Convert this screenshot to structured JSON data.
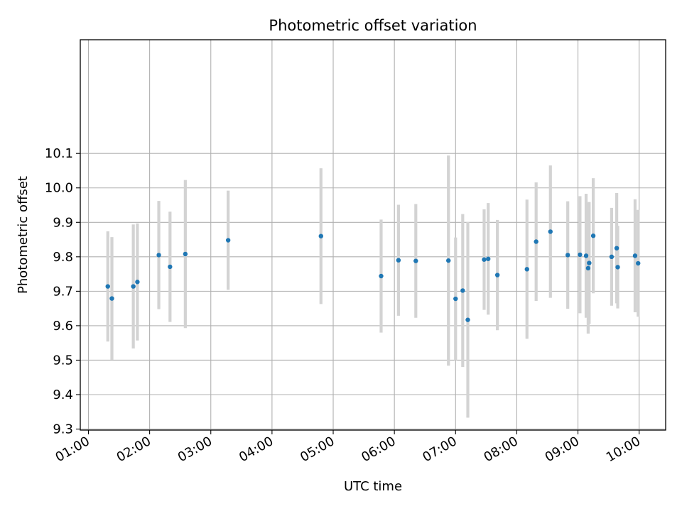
{
  "chart_data": {
    "type": "scatter",
    "title": "Photometric offset variation",
    "xlabel": "UTC time",
    "ylabel": "Photometric offset",
    "x_ticks": [
      "01:00",
      "02:00",
      "03:00",
      "04:00",
      "05:00",
      "06:00",
      "07:00",
      "08:00",
      "09:00",
      "10:00"
    ],
    "y_ticks": [
      "9.3",
      "9.4",
      "9.5",
      "9.6",
      "9.7",
      "9.8",
      "9.9",
      "10.0",
      "10.1"
    ],
    "xlim": [
      "00:52",
      "10:26"
    ],
    "ylim": [
      9.297,
      10.43
    ],
    "grid": true,
    "colors": {
      "point": "#1f77b4",
      "errorbar": "#d3d3d3",
      "grid": "#b0b0b0"
    },
    "series": [
      {
        "points": [
          {
            "x": "01:19",
            "y": 9.714,
            "err": 0.16
          },
          {
            "x": "01:23",
            "y": 9.679,
            "err": 0.178
          },
          {
            "x": "01:44",
            "y": 9.714,
            "err": 0.18
          },
          {
            "x": "01:48",
            "y": 9.727,
            "err": 0.17
          },
          {
            "x": "02:09",
            "y": 9.805,
            "err": 0.157
          },
          {
            "x": "02:20",
            "y": 9.771,
            "err": 0.16
          },
          {
            "x": "02:35",
            "y": 9.808,
            "err": 0.215
          },
          {
            "x": "03:17",
            "y": 9.848,
            "err": 0.144
          },
          {
            "x": "04:48",
            "y": 9.86,
            "err": 0.197
          },
          {
            "x": "05:47",
            "y": 9.744,
            "err": 0.164
          },
          {
            "x": "06:04",
            "y": 9.79,
            "err": 0.161
          },
          {
            "x": "06:21",
            "y": 9.788,
            "err": 0.165
          },
          {
            "x": "06:53",
            "y": 9.789,
            "err": 0.305
          },
          {
            "x": "07:00",
            "y": 9.678,
            "err": 0.178
          },
          {
            "x": "07:07",
            "y": 9.702,
            "err": 0.222
          },
          {
            "x": "07:12",
            "y": 9.617,
            "err": 0.284
          },
          {
            "x": "07:28",
            "y": 9.792,
            "err": 0.146
          },
          {
            "x": "07:32",
            "y": 9.794,
            "err": 0.162
          },
          {
            "x": "07:41",
            "y": 9.747,
            "err": 0.16
          },
          {
            "x": "08:10",
            "y": 9.764,
            "err": 0.202
          },
          {
            "x": "08:19",
            "y": 9.844,
            "err": 0.172
          },
          {
            "x": "08:33",
            "y": 9.873,
            "err": 0.192
          },
          {
            "x": "08:50",
            "y": 9.805,
            "err": 0.156
          },
          {
            "x": "09:02",
            "y": 9.806,
            "err": 0.17
          },
          {
            "x": "09:08",
            "y": 9.803,
            "err": 0.18
          },
          {
            "x": "09:10",
            "y": 9.767,
            "err": 0.19
          },
          {
            "x": "09:11",
            "y": 9.782,
            "err": 0.177
          },
          {
            "x": "09:15",
            "y": 9.861,
            "err": 0.167
          },
          {
            "x": "09:33",
            "y": 9.8,
            "err": 0.142
          },
          {
            "x": "09:38",
            "y": 9.825,
            "err": 0.16
          },
          {
            "x": "09:39",
            "y": 9.77,
            "err": 0.12
          },
          {
            "x": "09:56",
            "y": 9.803,
            "err": 0.164
          },
          {
            "x": "09:59",
            "y": 9.781,
            "err": 0.155
          }
        ]
      }
    ]
  }
}
